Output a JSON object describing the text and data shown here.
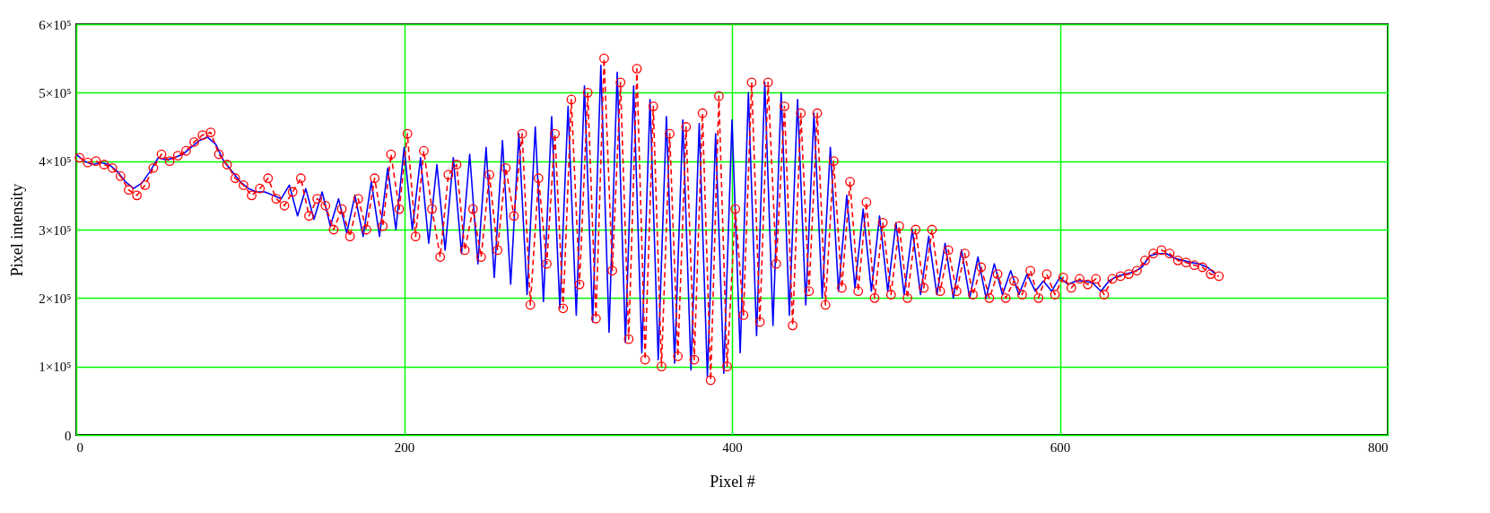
{
  "chart_data": {
    "type": "line",
    "xlabel": "Pixel #",
    "ylabel": "Pixel intensity",
    "xlim": [
      0,
      800
    ],
    "xticks": [
      0,
      200,
      400,
      600,
      800
    ],
    "ylim": [
      0,
      600000
    ],
    "yticks": [
      0,
      {
        "value": 100000,
        "label": "1×10⁵"
      },
      {
        "value": 200000,
        "label": "2×10⁵"
      },
      {
        "value": 300000,
        "label": "3×10⁵"
      },
      {
        "value": 400000,
        "label": "4×10⁵"
      },
      {
        "value": 500000,
        "label": "5×10⁵"
      },
      {
        "value": 600000,
        "label": "6×10⁵"
      }
    ],
    "grid": true,
    "series": [
      {
        "type": "line",
        "color": "#0000ff",
        "line_style": "solid",
        "marker": "none",
        "x": [
          0,
          5,
          10,
          15,
          20,
          25,
          30,
          35,
          40,
          45,
          50,
          55,
          60,
          65,
          70,
          75,
          80,
          85,
          90,
          95,
          100,
          105,
          110,
          115,
          120,
          125,
          130,
          135,
          140,
          145,
          150,
          155,
          160,
          165,
          170,
          175,
          180,
          185,
          190,
          195,
          200,
          205,
          210,
          215,
          220,
          225,
          230,
          235,
          240,
          245,
          250,
          255,
          260,
          265,
          270,
          275,
          280,
          285,
          290,
          295,
          300,
          305,
          310,
          315,
          320,
          325,
          330,
          335,
          340,
          345,
          350,
          355,
          360,
          365,
          370,
          375,
          380,
          385,
          390,
          395,
          400,
          405,
          410,
          415,
          420,
          425,
          430,
          435,
          440,
          445,
          450,
          455,
          460,
          465,
          470,
          475,
          480,
          485,
          490,
          495,
          500,
          505,
          510,
          515,
          520,
          525,
          530,
          535,
          540,
          545,
          550,
          555,
          560,
          565,
          570,
          575,
          580,
          585,
          590,
          595,
          600,
          605,
          610,
          615,
          620,
          625,
          630,
          635,
          640,
          645,
          650,
          655,
          660,
          665,
          670,
          675,
          680,
          685,
          690,
          695
        ],
        "values": [
          410000,
          400000,
          395000,
          398000,
          395000,
          385000,
          370000,
          360000,
          368000,
          385000,
          405000,
          402000,
          405000,
          410000,
          420000,
          430000,
          435000,
          425000,
          400000,
          385000,
          370000,
          360000,
          355000,
          355000,
          350000,
          345000,
          365000,
          320000,
          360000,
          315000,
          355000,
          305000,
          345000,
          295000,
          350000,
          290000,
          370000,
          290000,
          390000,
          300000,
          420000,
          300000,
          405000,
          280000,
          395000,
          270000,
          405000,
          265000,
          410000,
          250000,
          420000,
          230000,
          430000,
          220000,
          440000,
          205000,
          450000,
          195000,
          465000,
          185000,
          480000,
          175000,
          510000,
          165000,
          540000,
          150000,
          530000,
          135000,
          510000,
          120000,
          490000,
          110000,
          465000,
          105000,
          460000,
          95000,
          455000,
          85000,
          440000,
          90000,
          460000,
          120000,
          500000,
          145000,
          515000,
          160000,
          500000,
          175000,
          490000,
          190000,
          470000,
          200000,
          420000,
          210000,
          350000,
          215000,
          330000,
          210000,
          320000,
          210000,
          310000,
          205000,
          300000,
          205000,
          290000,
          205000,
          280000,
          200000,
          270000,
          200000,
          260000,
          200000,
          250000,
          205000,
          240000,
          205000,
          235000,
          210000,
          225000,
          210000,
          230000,
          220000,
          225000,
          225000,
          222000,
          210000,
          225000,
          232000,
          235000,
          238000,
          245000,
          262000,
          265000,
          265000,
          258000,
          255000,
          252000,
          250000,
          245000,
          235000
        ]
      },
      {
        "type": "line",
        "color": "#ff0000",
        "line_style": "dashed",
        "marker": "circle",
        "x": [
          2,
          7,
          12,
          17,
          22,
          27,
          32,
          37,
          42,
          47,
          52,
          57,
          62,
          67,
          72,
          77,
          82,
          87,
          92,
          97,
          102,
          107,
          112,
          117,
          122,
          127,
          132,
          137,
          142,
          147,
          152,
          157,
          162,
          167,
          172,
          177,
          182,
          187,
          192,
          197,
          202,
          207,
          212,
          217,
          222,
          227,
          232,
          237,
          242,
          247,
          252,
          257,
          262,
          267,
          272,
          277,
          282,
          287,
          292,
          297,
          302,
          307,
          312,
          317,
          322,
          327,
          332,
          337,
          342,
          347,
          352,
          357,
          362,
          367,
          372,
          377,
          382,
          387,
          392,
          397,
          402,
          407,
          412,
          417,
          422,
          427,
          432,
          437,
          442,
          447,
          452,
          457,
          462,
          467,
          472,
          477,
          482,
          487,
          492,
          497,
          502,
          507,
          512,
          517,
          522,
          527,
          532,
          537,
          542,
          547,
          552,
          557,
          562,
          567,
          572,
          577,
          582,
          587,
          592,
          597,
          602,
          607,
          612,
          617,
          622,
          627,
          632,
          637,
          642,
          647,
          652,
          657,
          662,
          667,
          672,
          677,
          682,
          687,
          692,
          697
        ],
        "values": [
          405000,
          398000,
          400000,
          395000,
          390000,
          378000,
          358000,
          350000,
          365000,
          390000,
          410000,
          400000,
          408000,
          415000,
          428000,
          438000,
          442000,
          410000,
          395000,
          375000,
          365000,
          350000,
          360000,
          375000,
          345000,
          335000,
          355000,
          375000,
          320000,
          345000,
          335000,
          300000,
          330000,
          290000,
          345000,
          300000,
          375000,
          305000,
          410000,
          330000,
          440000,
          290000,
          415000,
          330000,
          260000,
          380000,
          395000,
          270000,
          330000,
          260000,
          380000,
          270000,
          390000,
          320000,
          440000,
          190000,
          375000,
          250000,
          440000,
          185000,
          490000,
          220000,
          500000,
          170000,
          550000,
          240000,
          515000,
          140000,
          535000,
          110000,
          480000,
          100000,
          440000,
          115000,
          450000,
          110000,
          470000,
          80000,
          495000,
          100000,
          330000,
          175000,
          515000,
          165000,
          515000,
          250000,
          480000,
          160000,
          470000,
          210000,
          470000,
          190000,
          400000,
          215000,
          370000,
          210000,
          340000,
          200000,
          310000,
          205000,
          305000,
          200000,
          300000,
          215000,
          300000,
          210000,
          270000,
          210000,
          265000,
          205000,
          245000,
          200000,
          235000,
          200000,
          225000,
          205000,
          240000,
          200000,
          235000,
          205000,
          230000,
          215000,
          228000,
          220000,
          228000,
          205000,
          228000,
          232000,
          235000,
          240000,
          255000,
          265000,
          270000,
          265000,
          255000,
          252000,
          248000,
          245000,
          235000,
          232000
        ]
      }
    ]
  }
}
